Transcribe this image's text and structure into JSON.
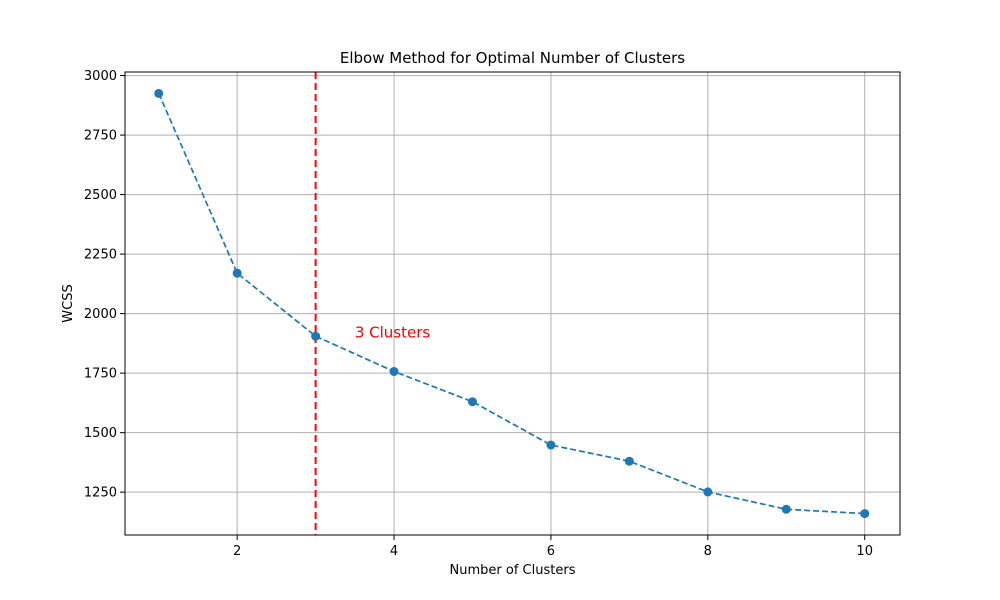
{
  "chart_data": {
    "type": "line",
    "title": "Elbow Method for Optimal Number of Clusters",
    "xlabel": "Number of Clusters",
    "ylabel": "WCSS",
    "x": [
      1,
      2,
      3,
      4,
      5,
      6,
      7,
      8,
      9,
      10
    ],
    "series": [
      {
        "values": [
          2925,
          2170,
          1905,
          1757,
          1630,
          1448,
          1380,
          1251,
          1178,
          1160
        ],
        "color": "#1f77b4",
        "line_style": "dashed",
        "marker": "circle"
      }
    ],
    "xlim": [
      0.57,
      10.45
    ],
    "ylim": [
      1070,
      3015
    ],
    "xticks": [
      2,
      4,
      6,
      8,
      10
    ],
    "yticks": [
      1250,
      1500,
      1750,
      2000,
      2250,
      2500,
      2750,
      3000
    ],
    "grid": true,
    "legend": "none",
    "vline": {
      "x": 3,
      "color": "#ff0000",
      "line_style": "dashed"
    },
    "annotation": {
      "text": "3 Clusters",
      "x": 3.5,
      "y": 1900,
      "color": "#ff0000"
    }
  }
}
